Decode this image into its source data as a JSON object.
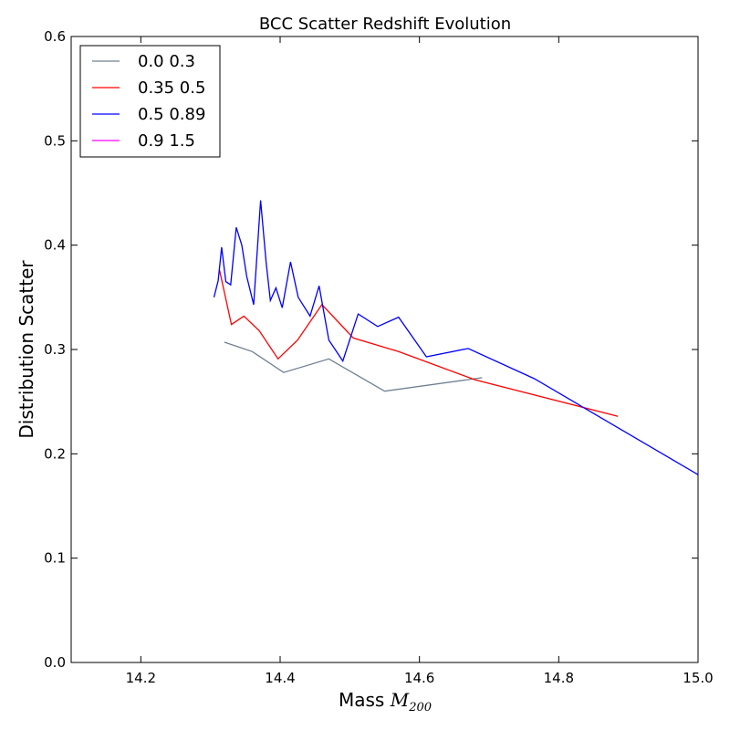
{
  "chart_data": {
    "type": "line",
    "title": "BCC Scatter Redshift Evolution",
    "xlabel": "Mass",
    "xlabel_math_base": "M",
    "xlabel_math_sub": "200",
    "ylabel": "Distribution Scatter",
    "xlim": [
      14.1,
      15.0
    ],
    "ylim": [
      0.0,
      0.6
    ],
    "xticks": [
      14.2,
      14.4,
      14.6,
      14.8,
      15.0
    ],
    "xtick_labels": [
      "14.2",
      "14.4",
      "14.6",
      "14.8",
      "15.0"
    ],
    "yticks": [
      0.0,
      0.1,
      0.2,
      0.3,
      0.4,
      0.5,
      0.6
    ],
    "ytick_labels": [
      "0.0",
      "0.1",
      "0.2",
      "0.3",
      "0.4",
      "0.5",
      "0.6"
    ],
    "grid": false,
    "legend_position": "top-left",
    "series": [
      {
        "name": "0.0 0.3",
        "color": "#708090",
        "x": [
          14.32,
          14.36,
          14.405,
          14.47,
          14.55,
          14.69
        ],
        "y": [
          0.307,
          0.298,
          0.278,
          0.291,
          0.26,
          0.273
        ]
      },
      {
        "name": "0.35 0.5",
        "color": "#ff0000",
        "x": [
          14.313,
          14.33,
          14.348,
          14.37,
          14.397,
          14.425,
          14.46,
          14.505,
          14.57,
          14.68,
          14.885
        ],
        "y": [
          0.376,
          0.324,
          0.332,
          0.318,
          0.291,
          0.309,
          0.343,
          0.311,
          0.298,
          0.271,
          0.236
        ]
      },
      {
        "name": "0.5 0.89",
        "color": "#0000ff",
        "x": [
          14.305,
          14.311,
          14.316,
          14.322,
          14.329,
          14.337,
          14.345,
          14.352,
          14.362,
          14.372,
          14.38,
          14.386,
          14.394,
          14.403,
          14.415,
          14.426,
          14.443,
          14.456,
          14.47,
          14.49,
          14.512,
          14.54,
          14.57,
          14.61,
          14.67,
          14.765,
          15.0
        ],
        "y": [
          0.35,
          0.366,
          0.398,
          0.365,
          0.362,
          0.417,
          0.4,
          0.37,
          0.343,
          0.443,
          0.383,
          0.347,
          0.359,
          0.34,
          0.384,
          0.35,
          0.332,
          0.361,
          0.309,
          0.289,
          0.334,
          0.322,
          0.331,
          0.293,
          0.301,
          0.272,
          0.18
        ]
      },
      {
        "name": "0.9 1.5",
        "color": "#ff00ff",
        "x": [],
        "y": []
      }
    ]
  }
}
